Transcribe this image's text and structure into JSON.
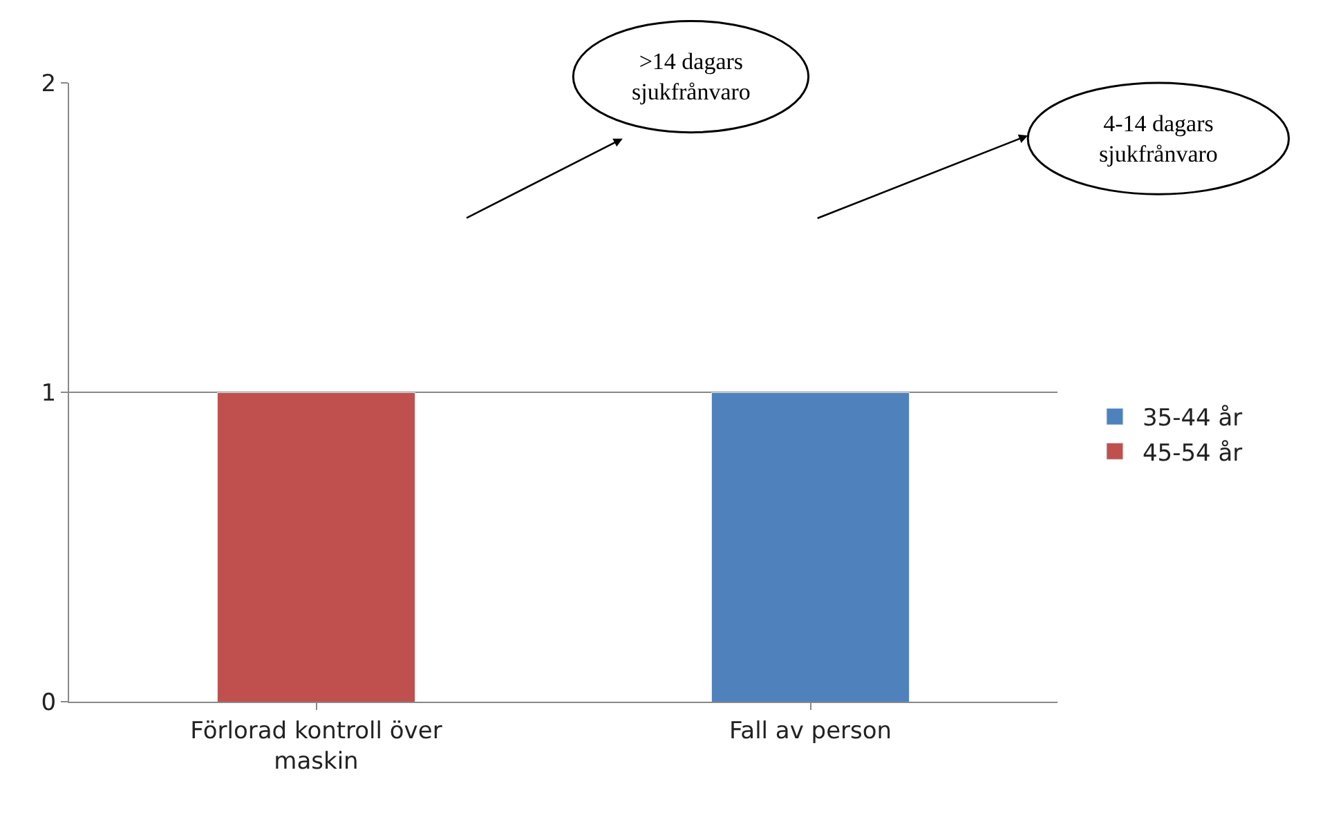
{
  "chart_data": {
    "type": "bar",
    "stacked": true,
    "categories": [
      "Förlorad kontroll över maskin",
      "Fall av person"
    ],
    "series": [
      {
        "name": "35-44 år",
        "color": "#4f81bd",
        "values": [
          null,
          1
        ]
      },
      {
        "name": "45-54 år",
        "color": "#c0504d",
        "values": [
          1,
          null
        ]
      }
    ],
    "ylim": [
      0,
      2
    ],
    "yticks": [
      0,
      1,
      2
    ],
    "grid": "y",
    "legend": "right",
    "annotations": [
      ">14 dagars sjukfrånvaro",
      "4-14 dagars sjukfrånvaro"
    ]
  }
}
